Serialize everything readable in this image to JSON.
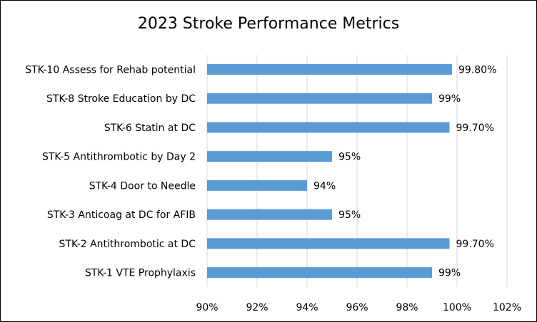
{
  "chart_data": {
    "type": "bar",
    "orientation": "horizontal",
    "title": "2023 Stroke Performance Metrics",
    "xlabel": "",
    "ylabel": "",
    "xlim": [
      90,
      102
    ],
    "x_ticks": [
      90,
      92,
      94,
      96,
      98,
      100,
      102
    ],
    "x_tick_labels": [
      "90%",
      "92%",
      "94%",
      "96%",
      "98%",
      "100%",
      "102%"
    ],
    "grid": "vertical",
    "legend": "none",
    "bar_color": "#5B9BD5",
    "categories": [
      "STK-10 Assess for Rehab potential",
      "STK-8 Stroke Education by DC",
      "STK-6 Statin at DC",
      "STK-5 Antithrombotic by Day 2",
      "STK-4 Door to Needle",
      "STK-3 Anticoag at DC for AFIB",
      "STK-2 Antithrombotic at DC",
      "STK-1 VTE Prophylaxis"
    ],
    "values": [
      99.8,
      99,
      99.7,
      95,
      94,
      95,
      99.7,
      99
    ],
    "data_labels": [
      "99.80%",
      "99%",
      "99.70%",
      "95%",
      "94%",
      "95%",
      "99.70%",
      "99%"
    ]
  }
}
